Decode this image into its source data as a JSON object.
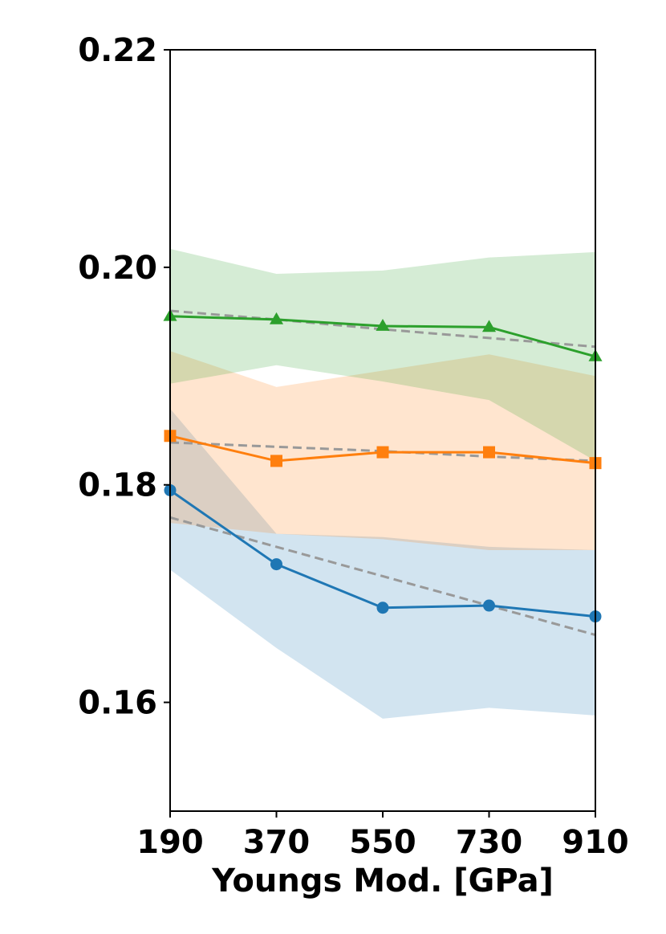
{
  "chart_data": {
    "type": "line",
    "title": "",
    "xlabel": "Youngs Mod. [GPa]",
    "ylabel": "",
    "x": [
      190,
      370,
      550,
      730,
      910
    ],
    "xlim": [
      190,
      910
    ],
    "ylim": [
      0.15,
      0.22
    ],
    "x_ticks": [
      {
        "value": 190,
        "label": "190"
      },
      {
        "value": 370,
        "label": "370"
      },
      {
        "value": 550,
        "label": "550"
      },
      {
        "value": 730,
        "label": "730"
      },
      {
        "value": 910,
        "label": "910"
      }
    ],
    "y_ticks": [
      {
        "value": 0.16,
        "label": "0.16"
      },
      {
        "value": 0.18,
        "label": "0.18"
      },
      {
        "value": 0.2,
        "label": "0.20"
      },
      {
        "value": 0.22,
        "label": "0.22"
      }
    ],
    "grid": false,
    "legend": "none",
    "series": [
      {
        "color": "#1f77b4",
        "marker": "circle",
        "values": [
          0.1795,
          0.1727,
          0.1687,
          0.1689,
          0.1679
        ],
        "band_upper": [
          0.187,
          0.1755,
          0.1752,
          0.1743,
          0.174
        ],
        "band_lower": [
          0.1722,
          0.165,
          0.1585,
          0.1595,
          0.1588
        ],
        "trend": [
          0.177,
          0.1743,
          0.1716,
          0.1689,
          0.1662
        ]
      },
      {
        "color": "#ff7f0e",
        "marker": "square",
        "values": [
          0.1845,
          0.1822,
          0.183,
          0.183,
          0.182
        ],
        "band_upper": [
          0.1923,
          0.189,
          0.1905,
          0.192,
          0.19
        ],
        "band_lower": [
          0.1765,
          0.1755,
          0.175,
          0.174,
          0.174
        ],
        "trend": [
          0.1839,
          0.1835,
          0.1831,
          0.1826,
          0.1822
        ]
      },
      {
        "color": "#2ca02c",
        "marker": "triangle",
        "values": [
          0.1955,
          0.1952,
          0.1946,
          0.1945,
          0.1918
        ],
        "band_upper": [
          0.2017,
          0.1994,
          0.1997,
          0.2009,
          0.2014
        ],
        "band_lower": [
          0.1893,
          0.191,
          0.1895,
          0.1878,
          0.1822
        ],
        "trend": [
          0.196,
          0.1952,
          0.1943,
          0.1935,
          0.1927
        ]
      }
    ],
    "trend_color": "#999999"
  }
}
